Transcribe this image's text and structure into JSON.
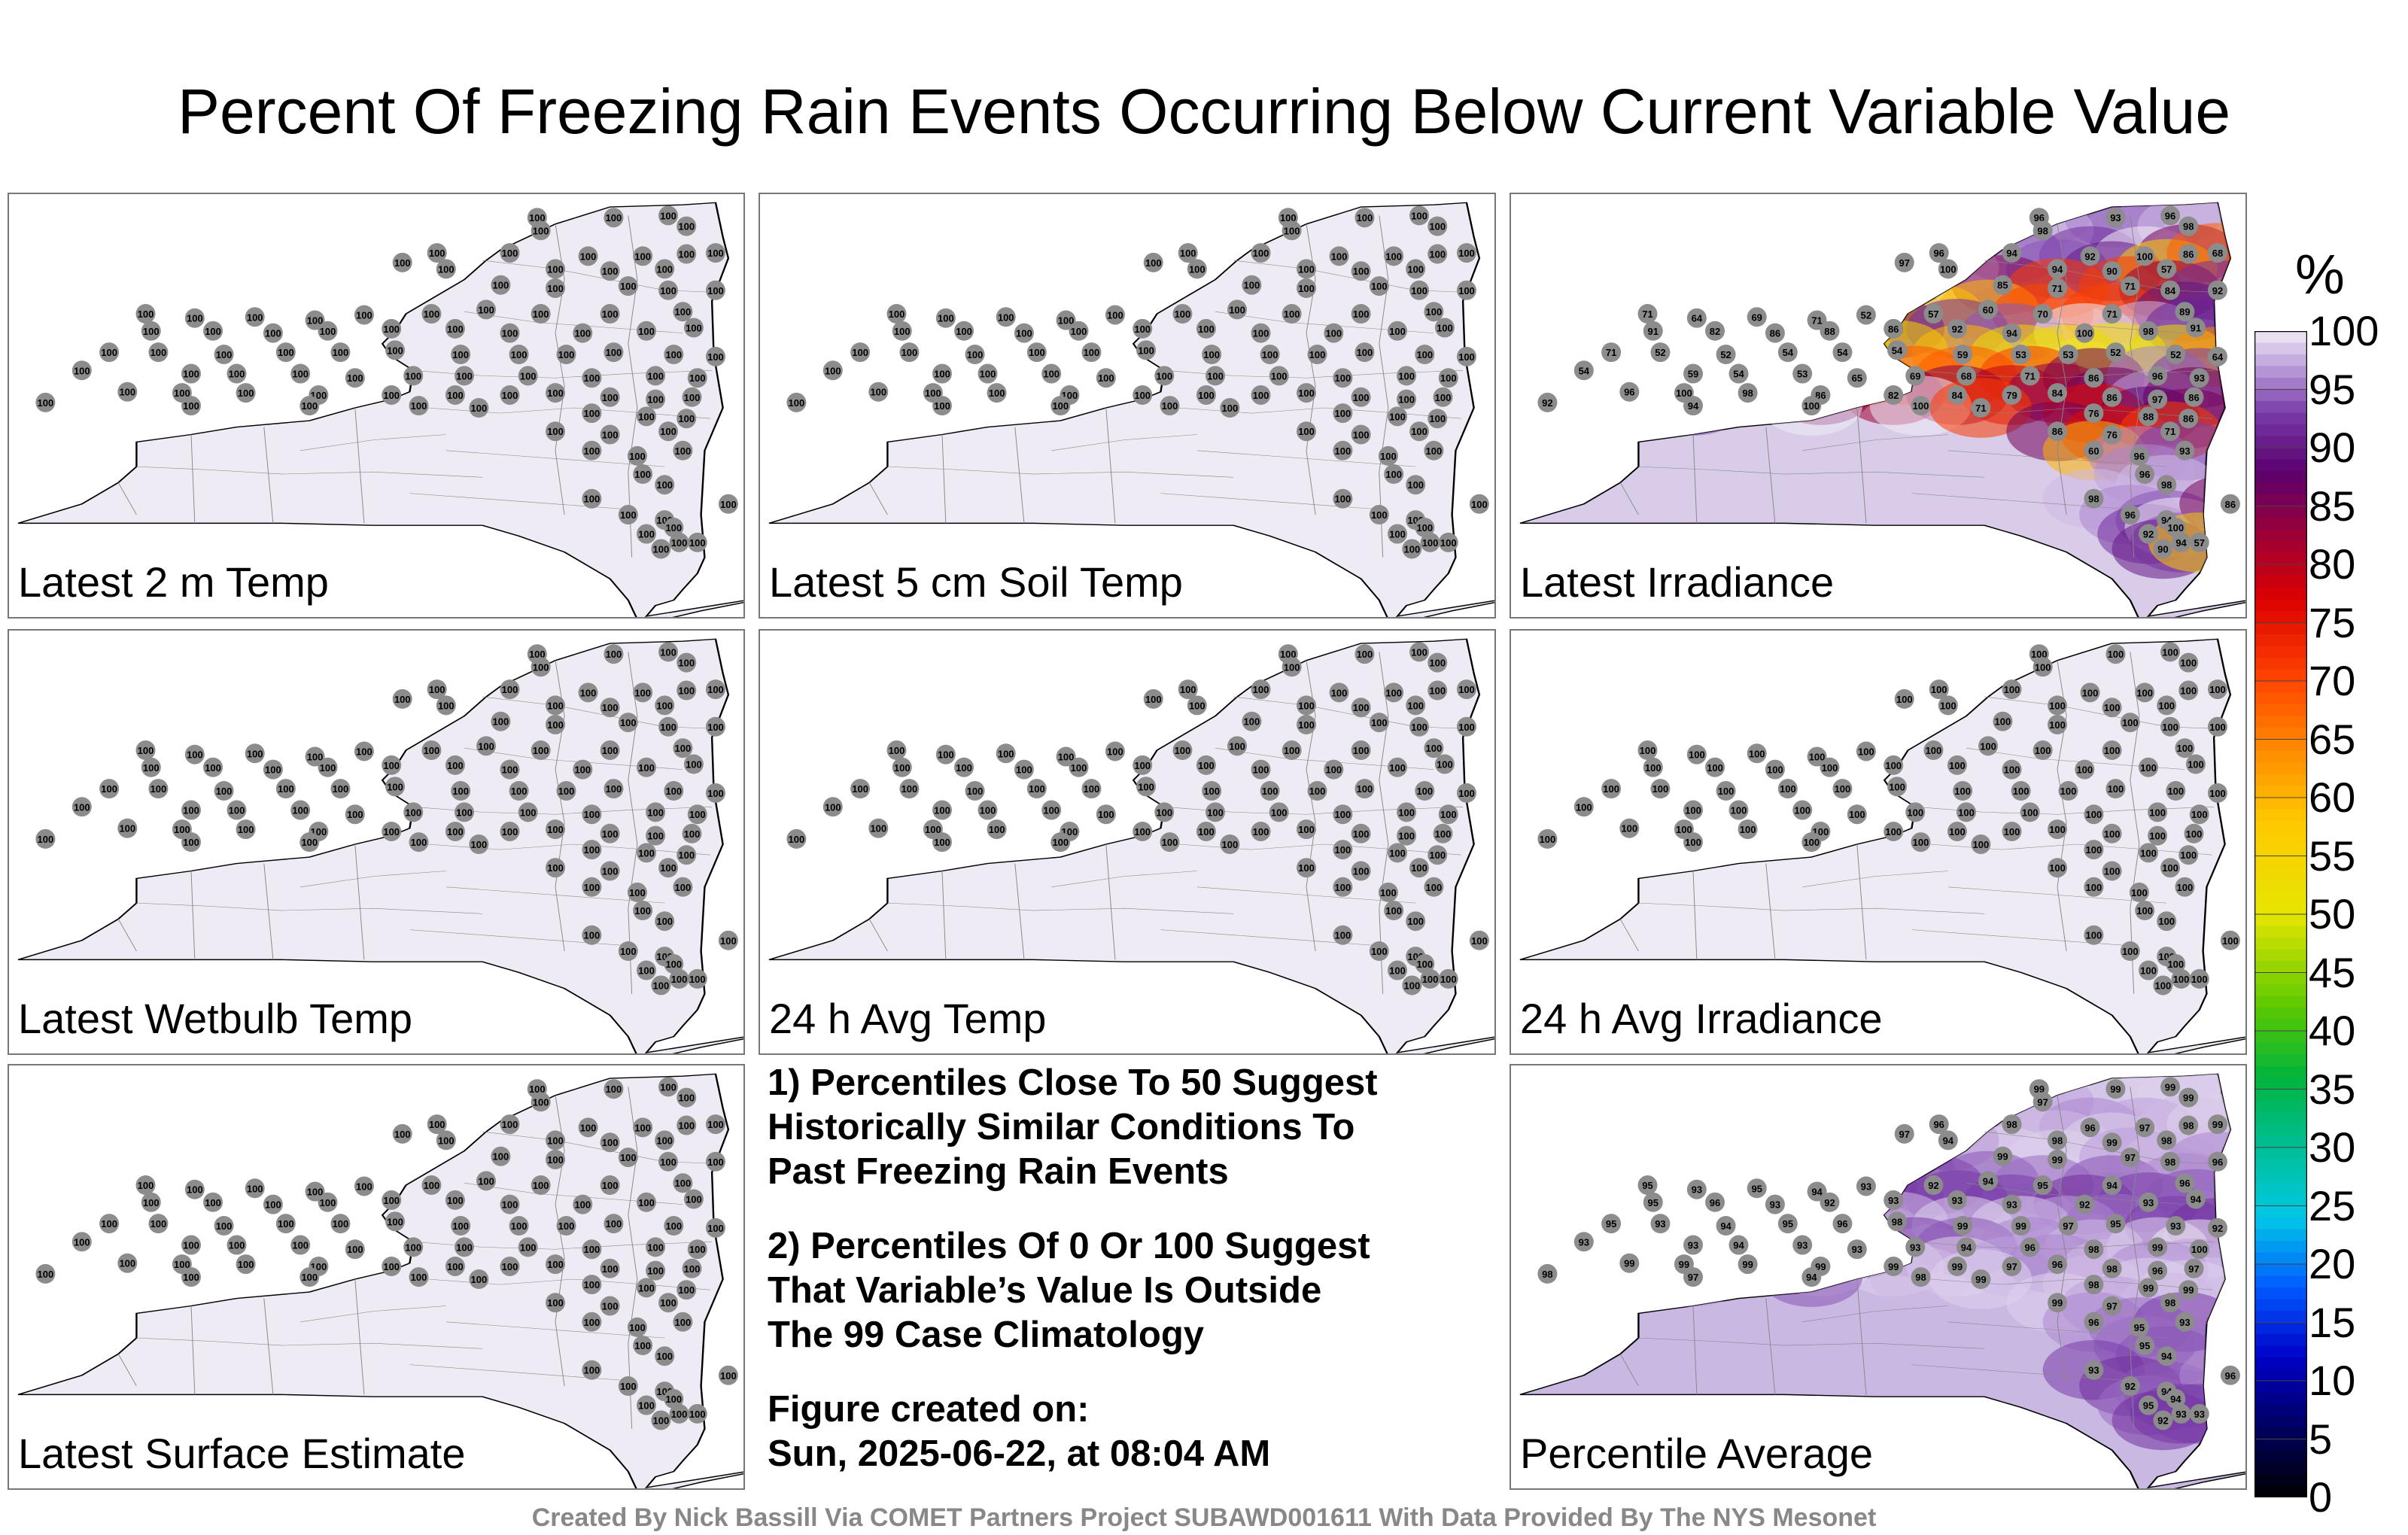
{
  "title": "Percent Of Freezing Rain Events Occurring Below Current Variable Value",
  "panels": [
    {
      "id": "2m",
      "label": "Latest 2 m Temp",
      "mode": "uniform",
      "value": "100"
    },
    {
      "id": "soil",
      "label": "Latest 5 cm Soil Temp",
      "mode": "uniform",
      "value": "100"
    },
    {
      "id": "irr",
      "label": "Latest Irradiance",
      "mode": "irradiance"
    },
    {
      "id": "wetbulb",
      "label": "Latest Wetbulb Temp",
      "mode": "uniform",
      "value": "100"
    },
    {
      "id": "avgtemp",
      "label": "24 h Avg Temp",
      "mode": "uniform",
      "value": "100"
    },
    {
      "id": "avgirr",
      "label": "24 h Avg Irradiance",
      "mode": "uniform",
      "value": "100"
    },
    {
      "id": "surf",
      "label": "Latest Surface Estimate",
      "mode": "uniform",
      "value": "100"
    },
    {
      "id": "avg",
      "label": "Percentile Average",
      "mode": "average"
    }
  ],
  "notes": [
    [
      "1) Percentiles Close To 50 Suggest",
      "Historically Similar Conditions To",
      "Past Freezing Rain Events"
    ],
    [
      "2) Percentiles Of 0 Or 100 Suggest",
      "That Variable’s Value Is Outside",
      "The 99 Case Climatology"
    ],
    [
      "Figure created on:",
      "Sun, 2025-06-22, at 08:04 AM"
    ]
  ],
  "footer": "Created By Nick Bassill Via COMET Partners Project SUBAWD001611 With Data Provided By The NYS Mesonet",
  "colorbar": {
    "unit": "%",
    "ticks": [
      "100",
      "95",
      "90",
      "85",
      "80",
      "75",
      "70",
      "65",
      "60",
      "55",
      "50",
      "45",
      "40",
      "35",
      "30",
      "25",
      "20",
      "15",
      "10",
      "5",
      "0"
    ]
  },
  "chart_data": {
    "type": "heatmap",
    "title": "Percent Of Freezing Rain Events Occurring Below Current Variable Value",
    "colorbar_range": [
      0,
      100
    ],
    "colorbar_label": "%",
    "panels": [
      {
        "name": "Latest 2 m Temp",
        "station_values": "all 100"
      },
      {
        "name": "Latest 5 cm Soil Temp",
        "station_values": "all 100"
      },
      {
        "name": "Latest Irradiance",
        "station_values": [
          96,
          93,
          96,
          98,
          98,
          96,
          94,
          92,
          100,
          86,
          97,
          100,
          94,
          90,
          57,
          68,
          85,
          71,
          71,
          84,
          92,
          71,
          64,
          69,
          71,
          52,
          57,
          60,
          70,
          71,
          89,
          91,
          82,
          86,
          88,
          86,
          92,
          94,
          100,
          98,
          91,
          71,
          52,
          52,
          54,
          54,
          54,
          59,
          53,
          53,
          52,
          52,
          64,
          54,
          59,
          54,
          53,
          65,
          69,
          68,
          71,
          86,
          96,
          93,
          96,
          100,
          98,
          86,
          82,
          84,
          79,
          84,
          86,
          97,
          86,
          92,
          94,
          100,
          100,
          71,
          76,
          88,
          86,
          86,
          76,
          71,
          60
        ]
      },
      {
        "name": "Latest Wetbulb Temp",
        "station_values": "all 100"
      },
      {
        "name": "24 h Avg Temp",
        "station_values": "all 100"
      },
      {
        "name": "24 h Avg Irradiance",
        "station_values": "all 100"
      },
      {
        "name": "Latest Surface Estimate",
        "station_values": "all 100"
      },
      {
        "name": "Percentile Average",
        "station_values": [
          99,
          99,
          99,
          99,
          97,
          96,
          98,
          96,
          97,
          98,
          97,
          94,
          98,
          99,
          98,
          99,
          99,
          99,
          97,
          98,
          96,
          95,
          93,
          95,
          94,
          93,
          92,
          94,
          95,
          94,
          96,
          95,
          96,
          93,
          92,
          93,
          93,
          93,
          92,
          93,
          94,
          95,
          93,
          94,
          95,
          96,
          98,
          99,
          99,
          97,
          95,
          93,
          92,
          93,
          93,
          94,
          93,
          93,
          93,
          94,
          96,
          98,
          99,
          100,
          99,
          99
        ]
      }
    ]
  }
}
